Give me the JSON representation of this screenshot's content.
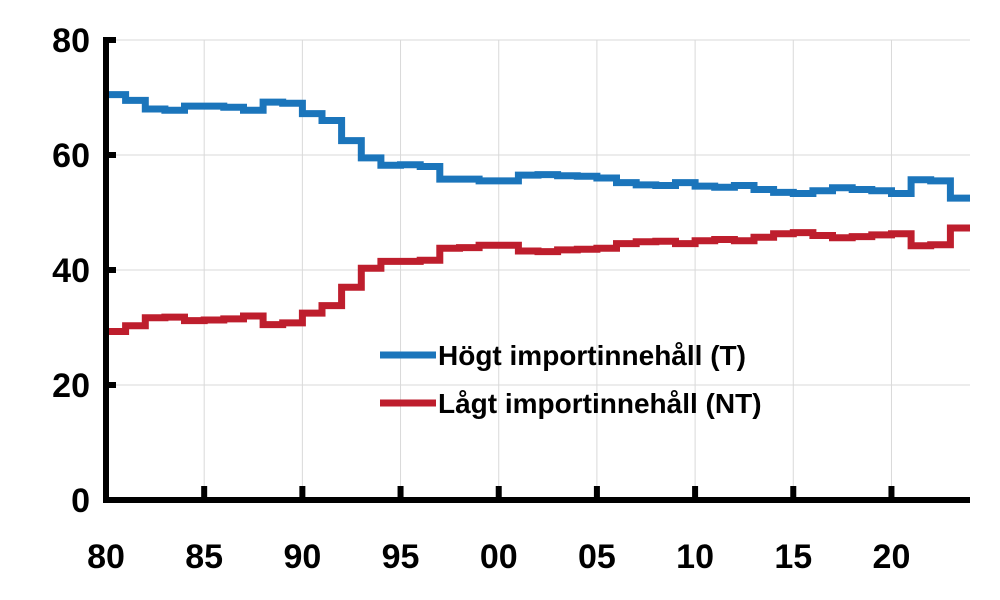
{
  "chart_data": {
    "type": "line",
    "title": "",
    "xlabel": "",
    "ylabel": "",
    "xlim": [
      1980,
      2024
    ],
    "ylim": [
      0,
      80
    ],
    "grid": true,
    "legend_position": "center-right",
    "x_ticks": [
      {
        "value": 1980,
        "label": "80"
      },
      {
        "value": 1985,
        "label": "85"
      },
      {
        "value": 1990,
        "label": "90"
      },
      {
        "value": 1995,
        "label": "95"
      },
      {
        "value": 2000,
        "label": "00"
      },
      {
        "value": 2005,
        "label": "05"
      },
      {
        "value": 2010,
        "label": "10"
      },
      {
        "value": 2015,
        "label": "15"
      },
      {
        "value": 2020,
        "label": "20"
      }
    ],
    "y_ticks": [
      {
        "value": 0,
        "label": "0"
      },
      {
        "value": 20,
        "label": "20"
      },
      {
        "value": 40,
        "label": "40"
      },
      {
        "value": 60,
        "label": "60"
      },
      {
        "value": 80,
        "label": "80"
      }
    ],
    "x": [
      1980,
      1981,
      1982,
      1983,
      1984,
      1985,
      1986,
      1987,
      1988,
      1989,
      1990,
      1991,
      1992,
      1993,
      1994,
      1995,
      1996,
      1997,
      1998,
      1999,
      2000,
      2001,
      2002,
      2003,
      2004,
      2005,
      2006,
      2007,
      2008,
      2009,
      2010,
      2011,
      2012,
      2013,
      2014,
      2015,
      2016,
      2017,
      2018,
      2019,
      2020,
      2021,
      2022,
      2023
    ],
    "series": [
      {
        "name": "Högt importinnehåll (T)",
        "color": "#1b75bb",
        "values": [
          70.5,
          69.5,
          68.0,
          67.8,
          68.5,
          68.5,
          68.3,
          67.8,
          69.2,
          69.0,
          67.2,
          66.0,
          62.5,
          59.5,
          58.2,
          58.3,
          58.0,
          55.8,
          55.8,
          55.5,
          55.5,
          56.5,
          56.6,
          56.4,
          56.3,
          56.0,
          55.2,
          54.8,
          54.7,
          55.2,
          54.6,
          54.4,
          54.7,
          54.0,
          53.5,
          53.3,
          53.8,
          54.3,
          54.0,
          53.8,
          53.3,
          55.7,
          55.5,
          52.5
        ]
      },
      {
        "name": "Lågt importinnehåll (NT)",
        "color": "#be1e2d",
        "values": [
          29.3,
          30.3,
          31.7,
          31.8,
          31.2,
          31.3,
          31.5,
          32.0,
          30.5,
          30.8,
          32.5,
          33.8,
          37.0,
          40.3,
          41.5,
          41.5,
          41.7,
          43.8,
          43.9,
          44.3,
          44.3,
          43.3,
          43.2,
          43.5,
          43.6,
          43.8,
          44.6,
          44.9,
          45.0,
          44.6,
          45.1,
          45.3,
          45.1,
          45.7,
          46.3,
          46.5,
          46.0,
          45.6,
          45.8,
          46.1,
          46.3,
          44.2,
          44.4,
          47.3
        ]
      }
    ]
  }
}
